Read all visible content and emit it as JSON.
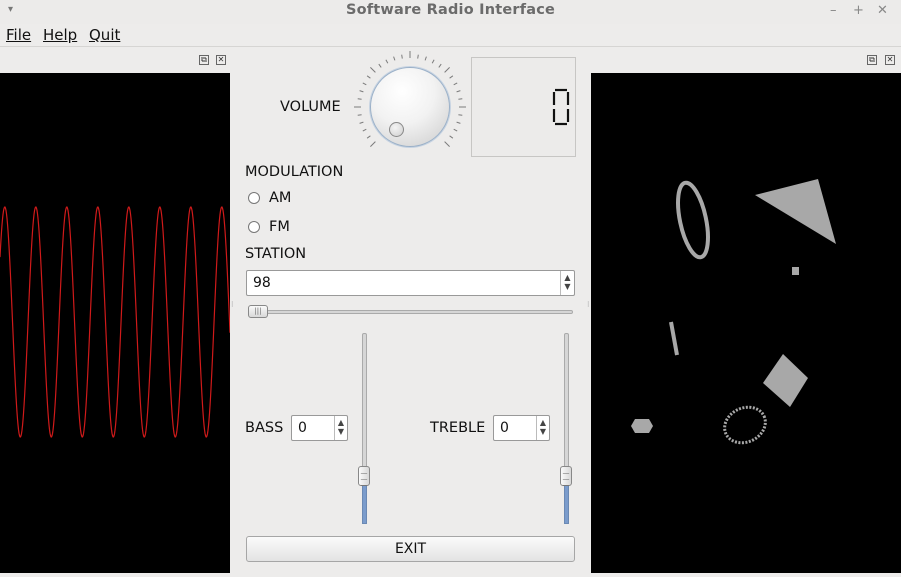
{
  "window": {
    "title": "Software Radio Interface"
  },
  "menu": {
    "file": "File",
    "help": "Help",
    "quit": "Quit"
  },
  "volume": {
    "label": "VOLUME",
    "display": "0",
    "level": 0
  },
  "modulation": {
    "label": "MODULATION",
    "options": [
      {
        "label": "AM",
        "checked": false
      },
      {
        "label": "FM",
        "checked": false
      }
    ]
  },
  "station": {
    "label": "STATION",
    "value": "98",
    "slider_fraction": 0.0
  },
  "bass": {
    "label": "BASS",
    "value": "0",
    "slider_fraction": 0.25
  },
  "treble": {
    "label": "TREBLE",
    "value": "0",
    "slider_fraction": 0.25
  },
  "exit": {
    "label": "EXIT"
  },
  "colors": {
    "waveform": "#d01a1a",
    "shapes": "#a8a8a8",
    "panel_bg": "#000000",
    "slider_fill": "#7b9ccc"
  },
  "icons": {
    "window_menu": "caret-down-icon",
    "minimize": "minimize-icon",
    "maximize": "maximize-icon",
    "close": "close-icon",
    "dock_float": "float-icon",
    "dock_close": "close-icon"
  }
}
